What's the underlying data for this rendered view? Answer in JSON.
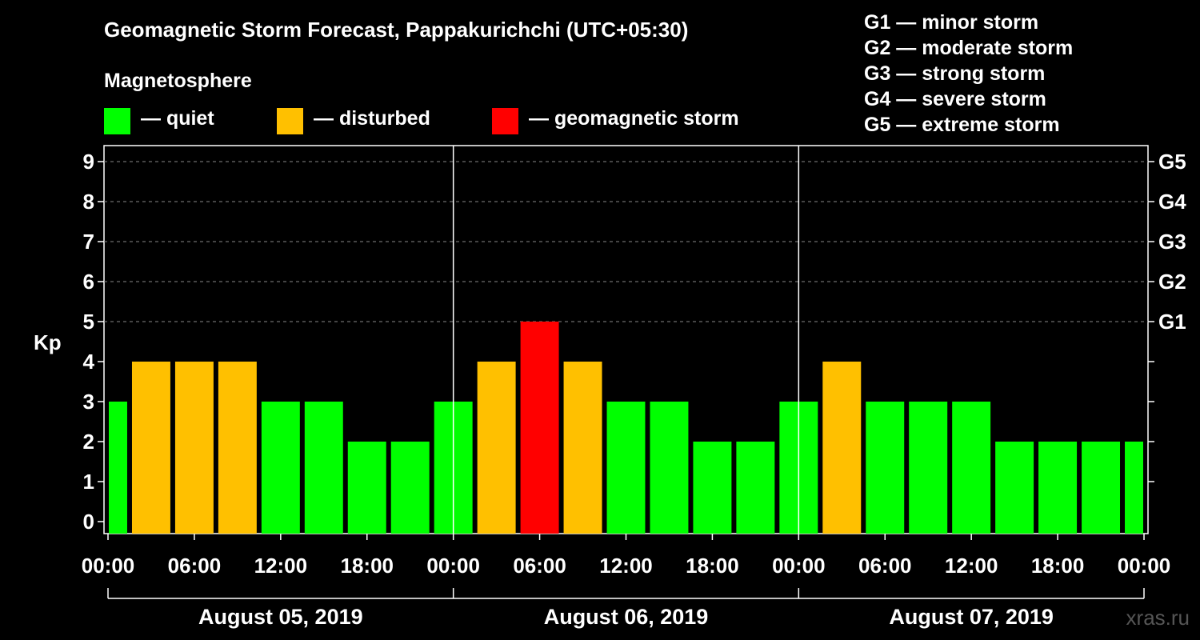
{
  "title": "Geomagnetic Storm Forecast, Pappakurichchi (UTC+05:30)",
  "legend": {
    "title": "Magnetosphere",
    "items": [
      {
        "label": "— quiet",
        "color": "#00ff00"
      },
      {
        "label": "— disturbed",
        "color": "#ffc000"
      },
      {
        "label": "— geomagnetic storm",
        "color": "#ff0000"
      }
    ]
  },
  "storm_scale": [
    "G1 — minor storm",
    "G2 — moderate storm",
    "G3 — strong storm",
    "G4 — severe storm",
    "G5 — extreme storm"
  ],
  "watermark": "xras.ru",
  "chart_data": {
    "type": "bar",
    "ylabel": "Kp",
    "ylim": [
      0,
      9
    ],
    "yticks": [
      "0",
      "1",
      "2",
      "3",
      "4",
      "5",
      "6",
      "7",
      "8",
      "9"
    ],
    "right_axis": [
      {
        "label": "G1",
        "kp": 5
      },
      {
        "label": "G2",
        "kp": 6
      },
      {
        "label": "G3",
        "kp": 7
      },
      {
        "label": "G4",
        "kp": 8
      },
      {
        "label": "G5",
        "kp": 9
      }
    ],
    "xtick_labels": [
      "00:00",
      "06:00",
      "12:00",
      "18:00",
      "00:00",
      "06:00",
      "12:00",
      "18:00",
      "00:00",
      "06:00",
      "12:00",
      "18:00",
      "00:00"
    ],
    "days": [
      "August 05, 2019",
      "August 06, 2019",
      "August 07, 2019"
    ],
    "interval_hours": 3,
    "start_offset_hours": -1.5,
    "values": [
      3,
      4,
      4,
      4,
      3,
      3,
      2,
      2,
      3,
      4,
      5,
      4,
      3,
      3,
      2,
      2,
      3,
      4,
      3,
      3,
      3,
      2,
      2,
      2,
      2
    ],
    "thresholds": {
      "disturbed": 4,
      "storm": 5
    },
    "colors": {
      "quiet": "#00ff00",
      "disturbed": "#ffc000",
      "storm": "#ff0000"
    }
  }
}
